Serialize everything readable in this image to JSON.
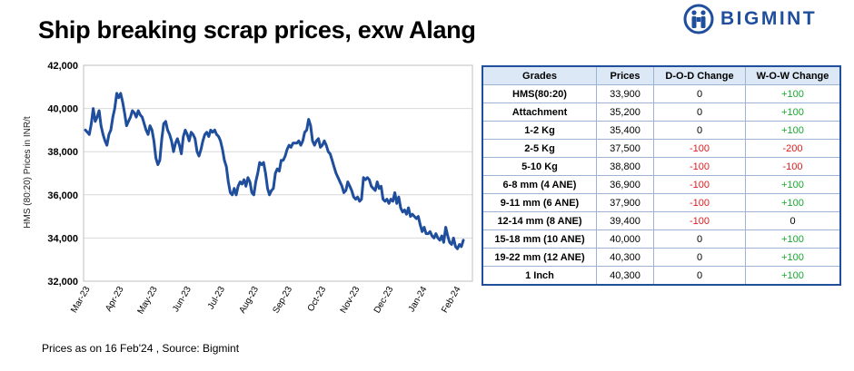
{
  "title": "Ship breaking scrap prices, exw Alang",
  "logo": {
    "text": "BIGMINT"
  },
  "footer": "Prices as on 16 Feb'24 , Source:  Bigmint",
  "colors": {
    "line": "#1f4e9c",
    "positive": "#17a72e",
    "negative": "#e31919",
    "header_bg": "#dce8f5"
  },
  "table": {
    "headers": [
      "Grades",
      "Prices",
      "D-O-D Change",
      "W-O-W Change"
    ],
    "rows": [
      {
        "grade": "HMS(80:20)",
        "price": "33,900",
        "dod": "0",
        "wow": "+100"
      },
      {
        "grade": "Attachment",
        "price": "35,200",
        "dod": "0",
        "wow": "+100"
      },
      {
        "grade": "1-2 Kg",
        "price": "35,400",
        "dod": "0",
        "wow": "+100"
      },
      {
        "grade": "2-5 Kg",
        "price": "37,500",
        "dod": "-100",
        "wow": "-200"
      },
      {
        "grade": "5-10 Kg",
        "price": "38,800",
        "dod": "-100",
        "wow": "-100"
      },
      {
        "grade": "6-8 mm (4 ANE)",
        "price": "36,900",
        "dod": "-100",
        "wow": "+100"
      },
      {
        "grade": "9-11 mm (6 ANE)",
        "price": "37,900",
        "dod": "-100",
        "wow": "+100"
      },
      {
        "grade": "12-14 mm (8 ANE)",
        "price": "39,400",
        "dod": "-100",
        "wow": "0"
      },
      {
        "grade": "15-18 mm (10 ANE)",
        "price": "40,000",
        "dod": "0",
        "wow": "+100"
      },
      {
        "grade": "19-22 mm (12 ANE)",
        "price": "40,300",
        "dod": "0",
        "wow": "+100"
      },
      {
        "grade": "1 Inch",
        "price": "40,300",
        "dod": "0",
        "wow": "+100"
      }
    ]
  },
  "chart_data": {
    "type": "line",
    "title": "",
    "ylabel": "HMS (80:20) Prices in INR/t",
    "xlabel": "",
    "ylim": [
      32000,
      42000
    ],
    "yticks": [
      32000,
      34000,
      36000,
      38000,
      40000,
      42000
    ],
    "ytick_labels": [
      "32,000",
      "34,000",
      "36,000",
      "38,000",
      "40,000",
      "42,000"
    ],
    "xticks": [
      "Mar-23",
      "Apr-23",
      "May-23",
      "Jun-23",
      "Jul-23",
      "Aug-23",
      "Sep-23",
      "Oct-23",
      "Nov-23",
      "Dec-23",
      "Jan-24",
      "Feb-24"
    ],
    "grid": true,
    "series": [
      {
        "values": [
          39000,
          38900,
          38800,
          39300,
          40000,
          39400,
          39600,
          39900,
          39200,
          38800,
          38500,
          38300,
          38800,
          39000,
          39600,
          40000,
          40700,
          40500,
          40700,
          40300,
          39800,
          39200,
          39400,
          39600,
          39900,
          39800,
          39600,
          39900,
          39700,
          39600,
          39300,
          39000,
          38800,
          39200,
          39000,
          38500,
          37700,
          37400,
          37600,
          38600,
          39300,
          39400,
          39000,
          38800,
          38500,
          38000,
          38400,
          38600,
          38300,
          37900,
          38700,
          39000,
          38800,
          38500,
          38900,
          38800,
          38600,
          38000,
          37800,
          38100,
          38500,
          38800,
          38900,
          38700,
          39000,
          38900,
          39000,
          38800,
          38700,
          38500,
          38100,
          37600,
          37300,
          36600,
          36100,
          36000,
          36300,
          36000,
          36400,
          36600,
          36500,
          36700,
          36400,
          36800,
          36600,
          36100,
          36000,
          36600,
          37000,
          37500,
          37400,
          37500,
          37000,
          36300,
          36000,
          36200,
          36300,
          37000,
          37200,
          37100,
          37600,
          37600,
          37800,
          38100,
          38300,
          38200,
          38400,
          38400,
          38400,
          38500,
          38300,
          38500,
          38900,
          39000,
          39500,
          39200,
          38500,
          38300,
          38500,
          38600,
          38200,
          38300,
          38500,
          38300,
          38000,
          37900,
          37600,
          37300,
          37000,
          36800,
          36600,
          36400,
          36100,
          36200,
          36600,
          36400,
          36200,
          35900,
          35800,
          35900,
          35700,
          35800,
          36800,
          36700,
          36800,
          36700,
          36400,
          36300,
          36200,
          36600,
          36300,
          36400,
          35800,
          35700,
          35800,
          35600,
          35800,
          35700,
          36100,
          35600,
          35900,
          35400,
          35200,
          35300,
          35100,
          35400,
          35000,
          35100,
          35000,
          34900,
          35000,
          34600,
          34300,
          34500,
          34200,
          34200,
          34300,
          34100,
          34000,
          34200,
          34000,
          33900,
          34100,
          33800,
          34500,
          34100,
          33800,
          33700,
          34000,
          33600,
          33500,
          33700,
          33600,
          33900
        ]
      }
    ]
  }
}
